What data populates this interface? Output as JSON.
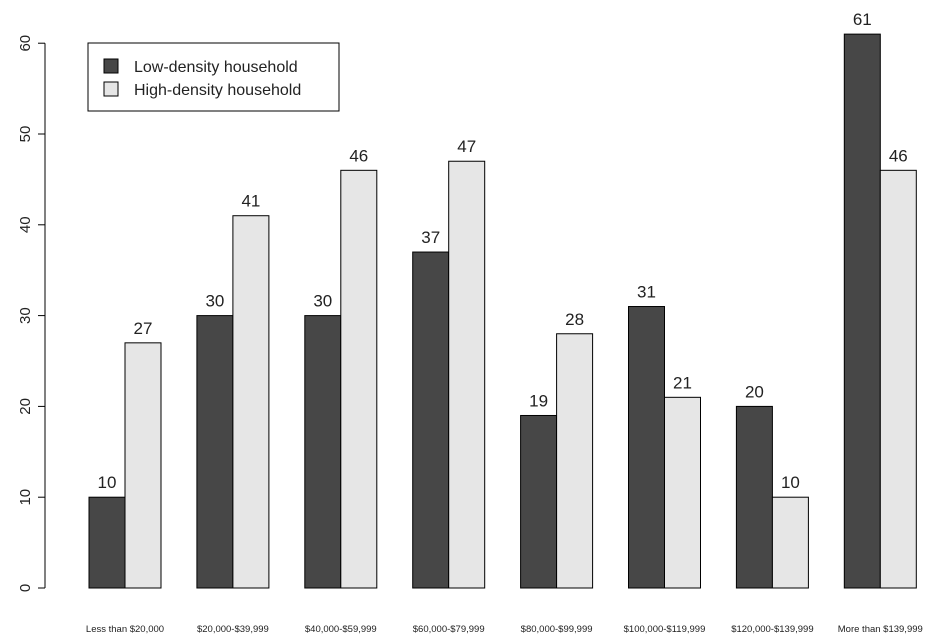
{
  "chart_data": {
    "type": "bar",
    "categories": [
      "Less than $20,000",
      "$20,000-$39,999",
      "$40,000-$59,999",
      "$60,000-$79,999",
      "$80,000-$99,999",
      "$100,000-$119,999",
      "$120,000-$139,999",
      "More than $139,999"
    ],
    "series": [
      {
        "name": "Low-density household",
        "color": "#474747",
        "values": [
          10,
          30,
          30,
          37,
          19,
          31,
          20,
          61
        ]
      },
      {
        "name": "High-density household",
        "color": "#e6e6e6",
        "values": [
          27,
          41,
          46,
          47,
          28,
          21,
          10,
          46
        ]
      }
    ],
    "yticks": [
      0,
      10,
      20,
      30,
      40,
      50,
      60
    ],
    "ylim": [
      0,
      65
    ],
    "grid": false,
    "legend_position": "top-left",
    "title": "",
    "xlabel": "",
    "ylabel": ""
  }
}
